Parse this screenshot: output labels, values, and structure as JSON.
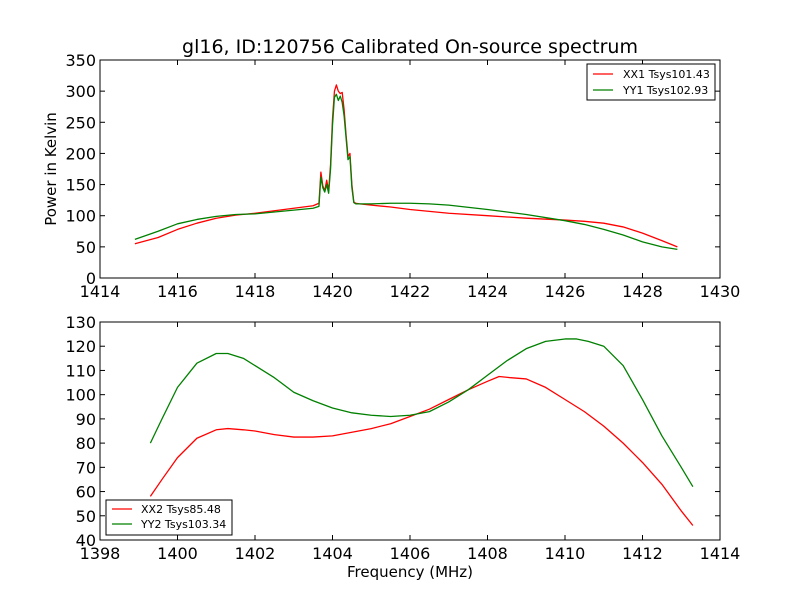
{
  "figure": {
    "title": "gl16, ID:120756 Calibrated On-source spectrum"
  },
  "chart_data": [
    {
      "type": "line",
      "ylabel": "Power in Kelvin",
      "xlabel": "",
      "xlim": [
        1414,
        1430
      ],
      "ylim": [
        0,
        350
      ],
      "xticks": [
        1414,
        1416,
        1418,
        1420,
        1422,
        1424,
        1426,
        1428,
        1430
      ],
      "yticks": [
        0,
        50,
        100,
        150,
        200,
        250,
        300,
        350
      ],
      "legend_position": "top-right",
      "grid": false,
      "series": [
        {
          "name": "XX1 Tsys101.43",
          "color": "#ff0000",
          "x": [
            1414.9,
            1415.5,
            1416,
            1416.5,
            1417,
            1417.5,
            1418,
            1418.5,
            1419,
            1419.5,
            1419.65,
            1419.7,
            1419.75,
            1419.8,
            1419.85,
            1419.9,
            1419.95,
            1420.0,
            1420.05,
            1420.1,
            1420.15,
            1420.2,
            1420.25,
            1420.3,
            1420.35,
            1420.4,
            1420.45,
            1420.5,
            1420.55,
            1420.6,
            1420.7,
            1421,
            1421.5,
            1422,
            1422.5,
            1423,
            1424,
            1425,
            1426,
            1426.5,
            1427,
            1427.5,
            1428,
            1428.5,
            1428.9
          ],
          "y": [
            55,
            65,
            78,
            88,
            96,
            101,
            104,
            108,
            112,
            116,
            120,
            170,
            148,
            140,
            157,
            140,
            182,
            255,
            300,
            310,
            300,
            296,
            298,
            270,
            230,
            195,
            200,
            150,
            122,
            120,
            119,
            117,
            114,
            110,
            107,
            104,
            100,
            96,
            93,
            91,
            88,
            82,
            72,
            60,
            50
          ]
        },
        {
          "name": "YY1 Tsys102.93",
          "color": "#008000",
          "x": [
            1414.9,
            1415.5,
            1416,
            1416.5,
            1417,
            1417.5,
            1418,
            1418.5,
            1419,
            1419.5,
            1419.65,
            1419.7,
            1419.75,
            1419.8,
            1419.85,
            1419.9,
            1419.95,
            1420.0,
            1420.05,
            1420.1,
            1420.15,
            1420.2,
            1420.25,
            1420.3,
            1420.35,
            1420.4,
            1420.45,
            1420.5,
            1420.55,
            1420.6,
            1420.7,
            1421,
            1421.5,
            1422,
            1422.5,
            1423,
            1424,
            1425,
            1426,
            1426.5,
            1427,
            1427.5,
            1428,
            1428.5,
            1428.9
          ],
          "y": [
            62,
            75,
            87,
            94,
            99,
            102,
            103,
            106,
            109,
            112,
            115,
            162,
            145,
            138,
            150,
            136,
            175,
            245,
            290,
            295,
            285,
            292,
            282,
            260,
            225,
            190,
            195,
            145,
            121,
            119,
            119,
            119,
            120,
            120,
            119,
            117,
            110,
            102,
            92,
            86,
            78,
            69,
            58,
            50,
            46
          ]
        }
      ]
    },
    {
      "type": "line",
      "xlabel": "Frequency (MHz)",
      "ylabel": "",
      "xlim": [
        1398,
        1414
      ],
      "ylim": [
        40,
        130
      ],
      "xticks": [
        1398,
        1400,
        1402,
        1404,
        1406,
        1408,
        1410,
        1412,
        1414
      ],
      "yticks": [
        40,
        50,
        60,
        70,
        80,
        90,
        100,
        110,
        120,
        130
      ],
      "legend_position": "bottom-left",
      "grid": false,
      "series": [
        {
          "name": "XX2 Tsys85.48",
          "color": "#ff0000",
          "x": [
            1399.3,
            1399.6,
            1400,
            1400.5,
            1401,
            1401.3,
            1401.7,
            1402,
            1402.5,
            1403,
            1403.5,
            1404,
            1404.5,
            1405,
            1405.5,
            1406,
            1406.5,
            1407,
            1407.5,
            1408,
            1408.3,
            1408.6,
            1409,
            1409.5,
            1410,
            1410.5,
            1411,
            1411.5,
            1412,
            1412.5,
            1413,
            1413.3
          ],
          "y": [
            58,
            65,
            74,
            82,
            85.5,
            86,
            85.5,
            85,
            83.5,
            82.5,
            82.5,
            83,
            84.5,
            86,
            88,
            91,
            94,
            98,
            102,
            105.5,
            107.5,
            107,
            106.5,
            103,
            98,
            93,
            87,
            80,
            72,
            63,
            52,
            46
          ]
        },
        {
          "name": "YY2 Tsys103.34",
          "color": "#008000",
          "x": [
            1399.3,
            1399.6,
            1400,
            1400.5,
            1401,
            1401.3,
            1401.7,
            1402,
            1402.5,
            1403,
            1403.5,
            1404,
            1404.5,
            1405,
            1405.5,
            1406,
            1406.5,
            1407,
            1407.5,
            1408,
            1408.5,
            1409,
            1409.5,
            1410,
            1410.3,
            1410.6,
            1411,
            1411.5,
            1412,
            1412.5,
            1413,
            1413.3
          ],
          "y": [
            80,
            90,
            103,
            113,
            117,
            117,
            115,
            112,
            107,
            101,
            97.5,
            94.5,
            92.5,
            91.5,
            91,
            91.5,
            93,
            97,
            102,
            108,
            114,
            119,
            122,
            123,
            123,
            122,
            120,
            112,
            98,
            83,
            70,
            62
          ]
        }
      ]
    }
  ]
}
